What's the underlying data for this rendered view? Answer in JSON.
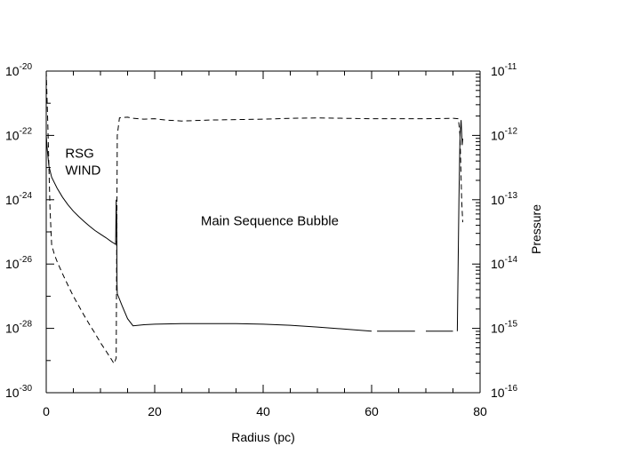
{
  "chart_data": {
    "type": "line",
    "title": "",
    "xlabel": "Radius (pc)",
    "ylabel": "",
    "y2label": "Pressure",
    "xlim": [
      0,
      80
    ],
    "ylim": [
      1e-30,
      1e-20
    ],
    "y2lim": [
      1e-16,
      1e-11
    ],
    "yscale": "log",
    "y2scale": "log",
    "grid": false,
    "x_ticks": [
      {
        "value": 0,
        "label": "0"
      },
      {
        "value": 20,
        "label": "20"
      },
      {
        "value": 40,
        "label": "40"
      },
      {
        "value": 60,
        "label": "60"
      },
      {
        "value": 80,
        "label": "80"
      }
    ],
    "y_ticks": [
      {
        "value": 1e-20,
        "base": "10",
        "exp": "-20"
      },
      {
        "value": 1e-22,
        "base": "10",
        "exp": "-22"
      },
      {
        "value": 1e-24,
        "base": "10",
        "exp": "-24"
      },
      {
        "value": 1e-26,
        "base": "10",
        "exp": "-26"
      },
      {
        "value": 1e-28,
        "base": "10",
        "exp": "-28"
      },
      {
        "value": 1e-30,
        "base": "10",
        "exp": "-30"
      }
    ],
    "y2_ticks": [
      {
        "value": 1e-11,
        "base": "10",
        "exp": "-11"
      },
      {
        "value": 1e-12,
        "base": "10",
        "exp": "-12"
      },
      {
        "value": 1e-13,
        "base": "10",
        "exp": "-13"
      },
      {
        "value": 1e-14,
        "base": "10",
        "exp": "-14"
      },
      {
        "value": 1e-15,
        "base": "10",
        "exp": "-15"
      },
      {
        "value": 1e-16,
        "base": "10",
        "exp": "-16"
      }
    ],
    "annotations": [
      {
        "text": "RSG",
        "x": 3.5,
        "y": 2e-23
      },
      {
        "text": "WIND",
        "x": 3.5,
        "y": 6e-24
      },
      {
        "text": "Main Sequence Bubble",
        "x": 28.5,
        "y": 1.6e-25
      }
    ],
    "series": [
      {
        "style": "solid",
        "axis": "left",
        "segments": [
          [
            [
              0.0,
              1e-22
            ],
            [
              0.2,
              3.5e-23
            ],
            [
              0.5,
              1.1e-23
            ],
            [
              1,
              5e-24
            ],
            [
              2,
              2.3e-24
            ],
            [
              3,
              1.2e-24
            ],
            [
              4,
              7e-25
            ],
            [
              5,
              4.4e-25
            ],
            [
              6,
              3e-25
            ],
            [
              7,
              2.1e-25
            ],
            [
              8,
              1.5e-25
            ],
            [
              9,
              1.1e-25
            ],
            [
              10,
              8.5e-26
            ],
            [
              11,
              6.6e-26
            ],
            [
              12,
              5e-26
            ],
            [
              12.8,
              4.1e-26
            ],
            [
              12.9,
              1e-24
            ],
            [
              13.0,
              2.2e-25
            ],
            [
              13.05,
              2.5e-27
            ],
            [
              13.1,
              1.2e-27
            ],
            [
              14,
              5e-28
            ],
            [
              15,
              2e-28
            ],
            [
              16,
              1.2e-28
            ],
            [
              18,
              1.3e-28
            ],
            [
              20,
              1.35e-28
            ],
            [
              25,
              1.4e-28
            ],
            [
              30,
              1.4e-28
            ],
            [
              35,
              1.4e-28
            ],
            [
              40,
              1.35e-28
            ],
            [
              45,
              1.25e-28
            ],
            [
              50,
              1.1e-28
            ],
            [
              55,
              9.5e-29
            ],
            [
              60,
              8.2e-29
            ]
          ],
          [
            [
              61,
              8.2e-29
            ],
            [
              62,
              8.2e-29
            ],
            [
              63,
              8.2e-29
            ],
            [
              64,
              8.2e-29
            ],
            [
              65,
              8.2e-29
            ],
            [
              66,
              8.2e-29
            ],
            [
              67,
              8.2e-29
            ],
            [
              68,
              8.2e-29
            ]
          ],
          [
            [
              70,
              8.2e-29
            ],
            [
              71,
              8.2e-29
            ],
            [
              72,
              8.2e-29
            ],
            [
              73,
              8.2e-29
            ],
            [
              74,
              8.2e-29
            ],
            [
              75,
              8.2e-29
            ]
          ],
          [
            [
              75.8,
              8.2e-29
            ],
            [
              76.1,
              1e-24
            ],
            [
              76.3,
              1e-22
            ],
            [
              76.5,
              3e-22
            ],
            [
              76.7,
              5e-23
            ],
            [
              76.8,
              8e-23
            ]
          ]
        ]
      },
      {
        "style": "dashed",
        "axis": "left",
        "segments": [
          [
            [
              0.0,
              1e-20
            ],
            [
              0.3,
              2e-22
            ],
            [
              0.7,
              5e-25
            ],
            [
              1,
              4e-26
            ],
            [
              1.5,
              2e-26
            ],
            [
              2,
              1.2e-26
            ],
            [
              3,
              5e-27
            ],
            [
              4,
              2.2e-27
            ],
            [
              5,
              1e-27
            ],
            [
              6,
              5e-28
            ],
            [
              7,
              2.5e-28
            ],
            [
              8,
              1.3e-28
            ],
            [
              9,
              7e-29
            ],
            [
              10,
              3.6e-29
            ],
            [
              11,
              2e-29
            ],
            [
              12,
              1.1e-29
            ],
            [
              12.5,
              8e-30
            ],
            [
              12.9,
              1.2e-29
            ],
            [
              13.1,
              1e-22
            ],
            [
              13.5,
              3.5e-22
            ],
            [
              15,
              3.7e-22
            ],
            [
              16,
              3.4e-22
            ],
            [
              18,
              3.2e-22
            ],
            [
              20,
              3.3e-22
            ],
            [
              22,
              3e-22
            ],
            [
              25,
              2.8e-22
            ],
            [
              30,
              3e-22
            ],
            [
              35,
              3.1e-22
            ],
            [
              40,
              3.2e-22
            ],
            [
              45,
              3.4e-22
            ],
            [
              50,
              3.5e-22
            ],
            [
              55,
              3.4e-22
            ],
            [
              60,
              3.3e-22
            ],
            [
              65,
              3.3e-22
            ],
            [
              70,
              3.3e-22
            ],
            [
              75,
              3.4e-22
            ],
            [
              76,
              3.3e-22
            ],
            [
              76.3,
              1e-22
            ],
            [
              76.6,
              1e-24
            ],
            [
              76.8,
              2e-25
            ]
          ]
        ]
      }
    ]
  }
}
